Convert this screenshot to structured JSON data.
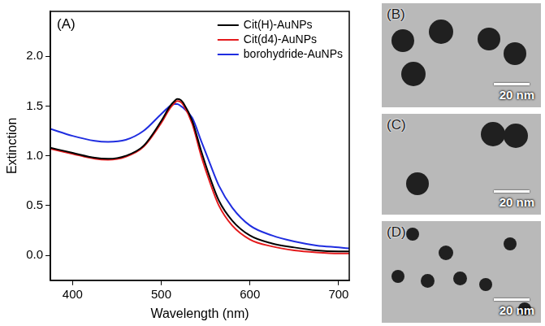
{
  "chart_data": {
    "type": "line",
    "annotation": "(A)",
    "x_label": "Wavelength (nm)",
    "y_label": "Extinction",
    "x": [
      375,
      400,
      425,
      440,
      460,
      480,
      500,
      510,
      515,
      518,
      522,
      525,
      535,
      545,
      555,
      565,
      580,
      600,
      625,
      650,
      675,
      700,
      712
    ],
    "series": [
      {
        "name": "Cit(H)-AuNPs",
        "color": "#000000",
        "values": [
          1.08,
          1.03,
          0.98,
          0.97,
          1.0,
          1.1,
          1.35,
          1.5,
          1.55,
          1.57,
          1.56,
          1.53,
          1.35,
          1.05,
          0.78,
          0.55,
          0.35,
          0.2,
          0.12,
          0.08,
          0.05,
          0.04,
          0.04
        ]
      },
      {
        "name": "Cit(d4)-AuNPs",
        "color": "#e41a1c",
        "values": [
          1.07,
          1.02,
          0.97,
          0.96,
          0.99,
          1.09,
          1.33,
          1.48,
          1.53,
          1.55,
          1.54,
          1.51,
          1.32,
          1.0,
          0.73,
          0.5,
          0.3,
          0.16,
          0.09,
          0.05,
          0.03,
          0.02,
          0.02
        ]
      },
      {
        "name": "borohydride-AuNPs",
        "color": "#1f2de0",
        "values": [
          1.27,
          1.2,
          1.15,
          1.14,
          1.16,
          1.25,
          1.42,
          1.5,
          1.52,
          1.52,
          1.5,
          1.48,
          1.38,
          1.15,
          0.92,
          0.7,
          0.48,
          0.3,
          0.2,
          0.14,
          0.1,
          0.08,
          0.07
        ]
      }
    ],
    "xlim": [
      375,
      712
    ],
    "xticks": [
      400,
      500,
      600,
      700
    ],
    "ylim": [
      -0.25,
      2.45
    ],
    "yticks": [
      {
        "value": 0,
        "label": "0.0"
      },
      {
        "value": 0.5,
        "label": "0.5"
      },
      {
        "value": 1,
        "label": "1.0"
      },
      {
        "value": 1.5,
        "label": "1.5"
      },
      {
        "value": 2,
        "label": "2.0"
      }
    ],
    "grid": false,
    "legend": "upper right"
  },
  "images": [
    {
      "label": "(B)",
      "scale_bar": "20 nm"
    },
    {
      "label": "(C)",
      "scale_bar": "20 nm"
    },
    {
      "label": "(D)",
      "scale_bar": "20 nm"
    }
  ]
}
